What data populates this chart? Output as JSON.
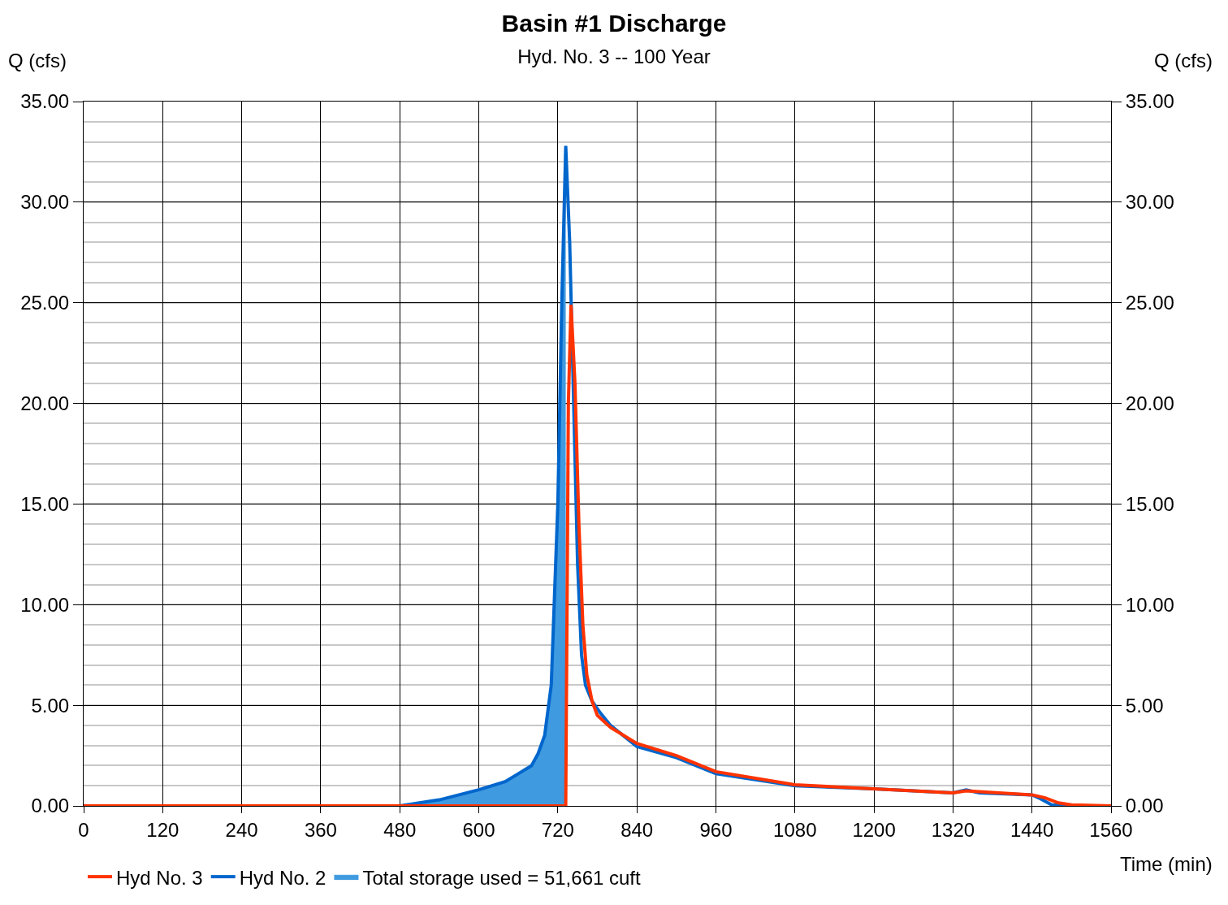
{
  "chart_data": {
    "type": "line",
    "title": "Basin #1 Discharge",
    "subtitle": "Hyd. No. 3 -- 100 Year",
    "xlabel": "Time (min)",
    "ylabel": "Q (cfs)",
    "y2label": "Q (cfs)",
    "series": [
      {
        "name": "Hyd No. 3",
        "color": "#ff3300",
        "x": [
          0,
          480,
          700,
          732,
          734,
          736,
          740,
          746,
          752,
          758,
          764,
          772,
          780,
          800,
          840,
          900,
          960,
          1080,
          1200,
          1320,
          1340,
          1440,
          1460,
          1480,
          1500,
          1560
        ],
        "values": [
          0,
          0,
          0,
          0,
          10,
          20,
          24.9,
          21,
          14,
          9,
          6.5,
          5.2,
          4.5,
          3.9,
          3.1,
          2.5,
          1.7,
          1.05,
          0.85,
          0.65,
          0.75,
          0.55,
          0.4,
          0.15,
          0.05,
          0
        ]
      },
      {
        "name": "Hyd No. 2",
        "color": "#0066cc",
        "x": [
          0,
          480,
          540,
          600,
          640,
          660,
          680,
          690,
          700,
          710,
          720,
          726,
          732,
          738,
          744,
          750,
          756,
          762,
          772,
          785,
          800,
          840,
          900,
          960,
          1080,
          1200,
          1320,
          1340,
          1360,
          1440,
          1450,
          1470,
          1500,
          1560
        ],
        "values": [
          0,
          0,
          0.3,
          0.8,
          1.2,
          1.6,
          2.0,
          2.6,
          3.5,
          6,
          15,
          25,
          32.8,
          28,
          20,
          12,
          7.5,
          6,
          5.2,
          4.6,
          4.0,
          2.95,
          2.4,
          1.6,
          1.0,
          0.85,
          0.65,
          0.8,
          0.65,
          0.55,
          0.4,
          0.05,
          0,
          0
        ]
      },
      {
        "name": "Total storage used = 51,661 cuft",
        "type": "area",
        "color": "#3f9ae0",
        "x": [
          480,
          540,
          600,
          640,
          660,
          680,
          690,
          700,
          710,
          720,
          726,
          732
        ],
        "values": [
          0,
          0.3,
          0.8,
          1.2,
          1.6,
          2.0,
          2.6,
          3.5,
          6,
          15,
          25,
          32.8
        ]
      }
    ],
    "xlim": [
      0,
      1560
    ],
    "xticks": [
      0,
      120,
      240,
      360,
      480,
      600,
      720,
      840,
      960,
      1080,
      1200,
      1320,
      1440,
      1560
    ],
    "ylim": [
      0,
      35
    ],
    "yticks": [
      {
        "value": 0,
        "label": "0.00"
      },
      {
        "value": 5,
        "label": "5.00"
      },
      {
        "value": 10,
        "label": "10.00"
      },
      {
        "value": 15,
        "label": "15.00"
      },
      {
        "value": 20,
        "label": "20.00"
      },
      {
        "value": 25,
        "label": "25.00"
      },
      {
        "value": 30,
        "label": "30.00"
      },
      {
        "value": 35,
        "label": "35.00"
      }
    ],
    "y2lim": [
      0,
      35
    ],
    "y2ticks": [
      {
        "value": 0,
        "label": "0.00"
      },
      {
        "value": 5,
        "label": "5.00"
      },
      {
        "value": 10,
        "label": "10.00"
      },
      {
        "value": 15,
        "label": "15.00"
      },
      {
        "value": 20,
        "label": "20.00"
      },
      {
        "value": 25,
        "label": "25.00"
      },
      {
        "value": 30,
        "label": "30.00"
      },
      {
        "value": 35,
        "label": "35.00"
      }
    ],
    "grid": true,
    "legend": "bottom",
    "marker": "none",
    "line_style": "solid"
  }
}
